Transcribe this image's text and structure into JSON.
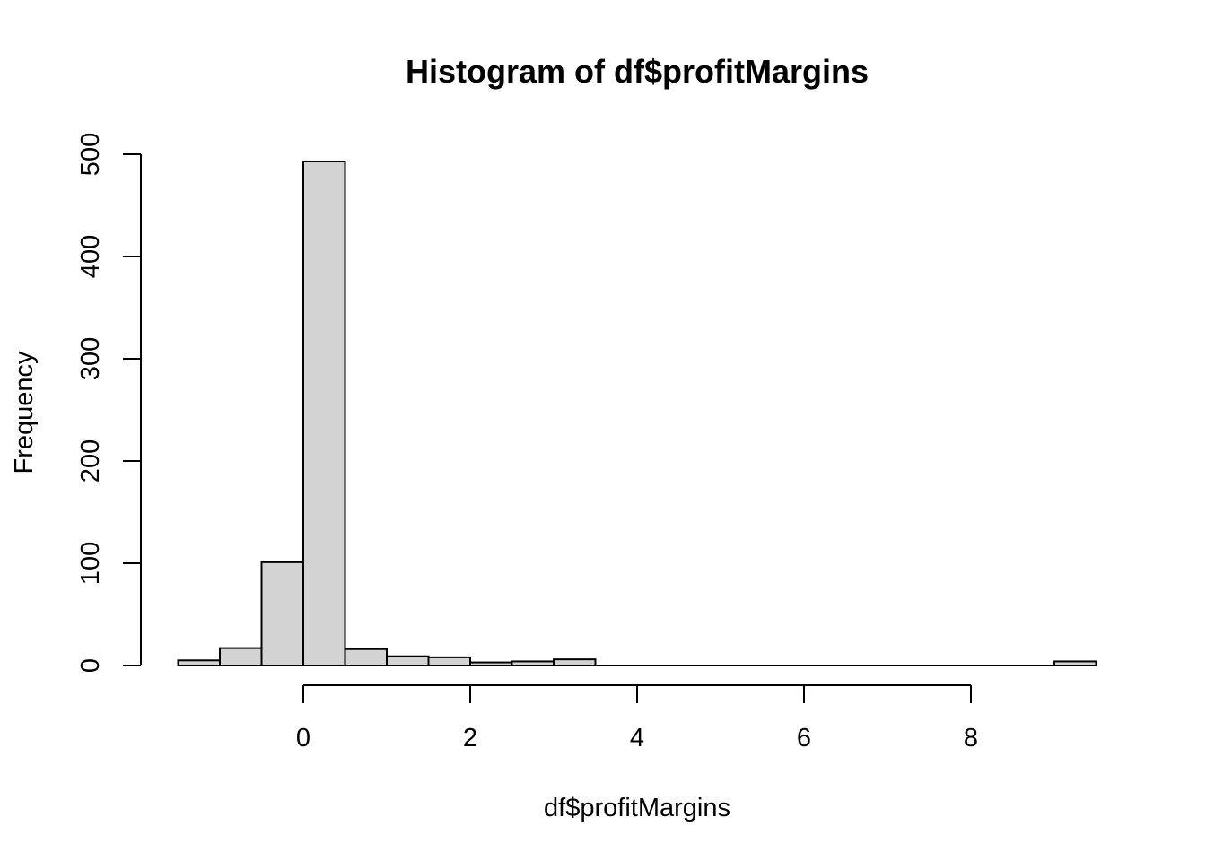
{
  "chart_data": {
    "type": "bar",
    "title": "Histogram of df$profitMargins",
    "xlabel": "df$profitMargins",
    "ylabel": "Frequency",
    "bar_color": "#d3d3d3",
    "bin_edges": [
      -1.5,
      -1.0,
      -0.5,
      0.0,
      0.5,
      1.0,
      1.5,
      2.0,
      2.5,
      3.0,
      3.5,
      4.0,
      4.5,
      5.0,
      5.5,
      6.0,
      6.5,
      7.0,
      7.5,
      8.0,
      8.5,
      9.0,
      9.5
    ],
    "values": [
      5,
      17,
      101,
      493,
      16,
      9,
      8,
      3,
      4,
      6,
      0,
      0,
      0,
      0,
      0,
      0,
      0,
      0,
      0,
      0,
      0,
      4
    ],
    "xlim": [
      -1.5,
      9.5
    ],
    "ylim": [
      0,
      500
    ],
    "x_ticks": [
      0,
      2,
      4,
      6,
      8
    ],
    "y_ticks": [
      0,
      100,
      200,
      300,
      400,
      500
    ],
    "grid": false
  }
}
